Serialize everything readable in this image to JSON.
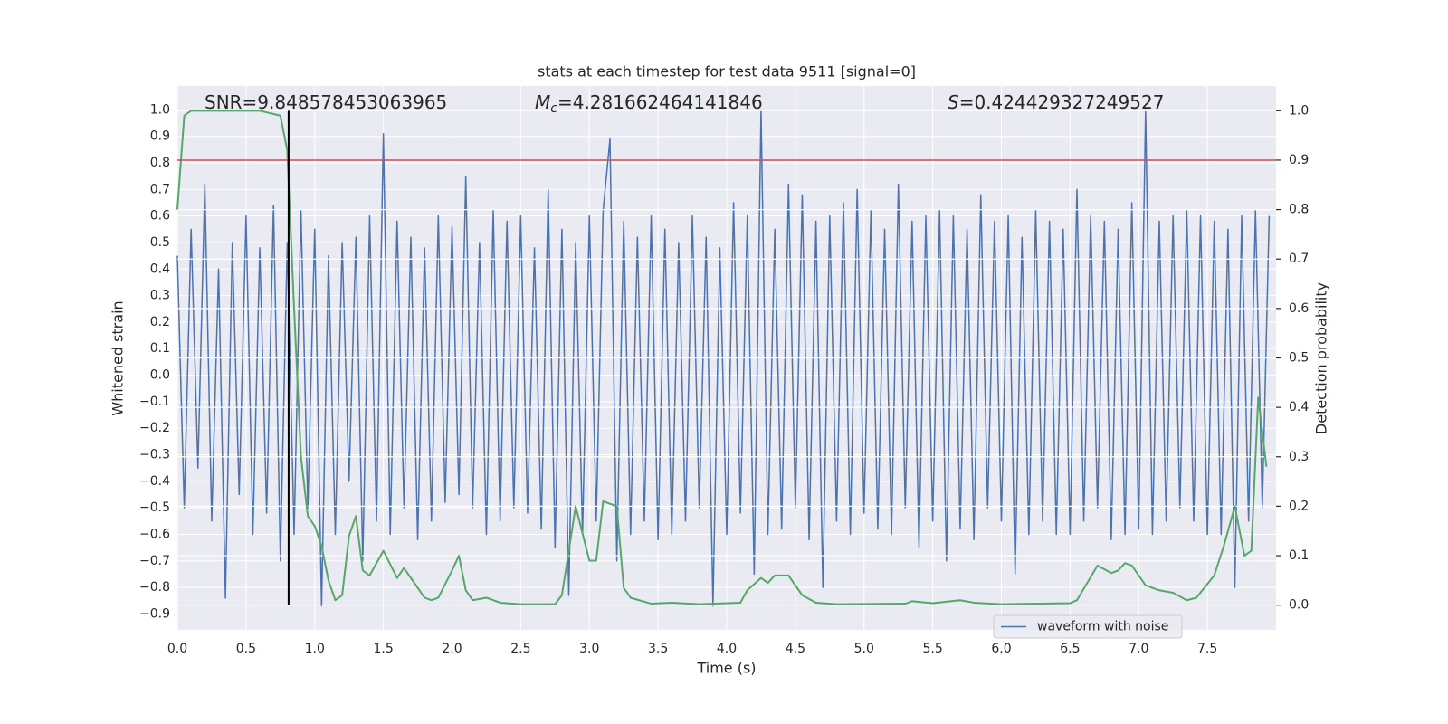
{
  "chart_data": {
    "type": "line",
    "title": "stats at each timestep for test data 9511 [signal=0]",
    "x_label": "Time (s)",
    "y_label": "Whitened strain",
    "y2_label": "Detection probability",
    "annotations": [
      {
        "text": "SNR=9.848578453063965"
      },
      {
        "symbol": "M",
        "subscript": "c",
        "text": "=4.281662464141846"
      },
      {
        "symbol": "S",
        "text": "=0.424429327249527"
      }
    ],
    "xlim": [
      0,
      8
    ],
    "ylim": [
      -0.96,
      1.09
    ],
    "y2lim": [
      -0.05,
      1.05
    ],
    "xticks": [
      {
        "value": 0,
        "label": "0.0"
      },
      0.5,
      {
        "value": 1,
        "label": "1.0"
      },
      1.5,
      {
        "value": 2,
        "label": "2.0"
      },
      2.5,
      {
        "value": 3,
        "label": "3.0"
      },
      3.5,
      {
        "value": 4,
        "label": "4.0"
      },
      4.5,
      {
        "value": 5,
        "label": "5.0"
      },
      5.5,
      {
        "value": 6,
        "label": "6.0"
      },
      6.5,
      {
        "value": 7,
        "label": "7.0"
      },
      7.5
    ],
    "yticks": [
      {
        "value": -0.9,
        "label": "−0.9"
      },
      {
        "value": -0.8,
        "label": "−0.8"
      },
      {
        "value": -0.7,
        "label": "−0.7"
      },
      {
        "value": -0.6,
        "label": "−0.6"
      },
      {
        "value": -0.5,
        "label": "−0.5"
      },
      {
        "value": -0.4,
        "label": "−0.4"
      },
      {
        "value": -0.3,
        "label": "−0.3"
      },
      {
        "value": -0.2,
        "label": "−0.2"
      },
      {
        "value": -0.1,
        "label": "−0.1"
      },
      {
        "value": 0,
        "label": "0.0"
      },
      0.1,
      0.2,
      0.3,
      0.4,
      0.5,
      0.6,
      0.7,
      0.8,
      0.9,
      {
        "value": 1,
        "label": "1.0"
      }
    ],
    "y2ticks": [
      {
        "value": 0,
        "label": "0.0"
      },
      0.1,
      0.2,
      0.3,
      0.4,
      0.5,
      0.6,
      0.7,
      0.8,
      0.9,
      {
        "value": 1,
        "label": "1.0"
      }
    ],
    "grid": true,
    "legend": "lower right",
    "series": [
      {
        "name": "waveform with noise",
        "color": "#4c72b0",
        "x": [
          0,
          0.05,
          0.1,
          0.15,
          0.2,
          0.25,
          0.3,
          0.35,
          0.4,
          0.45,
          0.5,
          0.55,
          0.6,
          0.65,
          0.7,
          0.75,
          0.8,
          0.85,
          0.9,
          0.95,
          1,
          1.05,
          1.1,
          1.15,
          1.2,
          1.25,
          1.3,
          1.35,
          1.4,
          1.45,
          1.5,
          1.55,
          1.6,
          1.65,
          1.7,
          1.75,
          1.8,
          1.85,
          1.9,
          1.95,
          2,
          2.05,
          2.1,
          2.15,
          2.2,
          2.25,
          2.3,
          2.35,
          2.4,
          2.45,
          2.5,
          2.55,
          2.6,
          2.65,
          2.7,
          2.75,
          2.8,
          2.85,
          2.9,
          2.95,
          3,
          3.05,
          3.1,
          3.15,
          3.2,
          3.25,
          3.3,
          3.35,
          3.4,
          3.45,
          3.5,
          3.55,
          3.6,
          3.65,
          3.7,
          3.75,
          3.8,
          3.85,
          3.9,
          3.95,
          4,
          4.05,
          4.1,
          4.15,
          4.2,
          4.25,
          4.3,
          4.35,
          4.4,
          4.45,
          4.5,
          4.55,
          4.6,
          4.65,
          4.7,
          4.75,
          4.8,
          4.85,
          4.9,
          4.95,
          5,
          5.05,
          5.1,
          5.15,
          5.2,
          5.25,
          5.3,
          5.35,
          5.4,
          5.45,
          5.5,
          5.55,
          5.6,
          5.65,
          5.7,
          5.75,
          5.8,
          5.85,
          5.9,
          5.95,
          6,
          6.05,
          6.1,
          6.15,
          6.2,
          6.25,
          6.3,
          6.35,
          6.4,
          6.45,
          6.5,
          6.55,
          6.6,
          6.65,
          6.7,
          6.75,
          6.8,
          6.85,
          6.9,
          6.95,
          7,
          7.05,
          7.1,
          7.15,
          7.2,
          7.25,
          7.3,
          7.35,
          7.4,
          7.45,
          7.5,
          7.55,
          7.6,
          7.65,
          7.7,
          7.75,
          7.8,
          7.85,
          7.9,
          7.95
        ],
        "values": [
          0.45,
          -0.5,
          0.55,
          -0.35,
          0.72,
          -0.55,
          0.4,
          -0.84,
          0.5,
          -0.45,
          0.6,
          -0.6,
          0.48,
          -0.52,
          0.64,
          -0.7,
          0.5,
          -0.6,
          0.62,
          -0.5,
          0.55,
          -0.87,
          0.45,
          -0.6,
          0.5,
          -0.4,
          0.52,
          -0.7,
          0.6,
          -0.55,
          0.91,
          -0.6,
          0.58,
          -0.5,
          0.52,
          -0.62,
          0.48,
          -0.55,
          0.6,
          -0.48,
          0.56,
          -0.45,
          0.75,
          -0.5,
          0.5,
          -0.6,
          0.62,
          -0.55,
          0.58,
          -0.5,
          0.6,
          -0.52,
          0.48,
          -0.58,
          0.7,
          -0.65,
          0.55,
          -0.83,
          0.5,
          -0.6,
          0.6,
          -0.55,
          0.62,
          0.89,
          -0.7,
          0.58,
          -0.6,
          0.52,
          -0.55,
          0.6,
          -0.62,
          0.55,
          -0.6,
          0.5,
          -0.55,
          0.6,
          -0.5,
          0.52,
          -0.87,
          0.48,
          -0.6,
          0.65,
          -0.52,
          0.6,
          -0.75,
          1.0,
          -0.6,
          0.55,
          -0.58,
          0.72,
          -0.5,
          0.68,
          -0.62,
          0.58,
          -0.8,
          0.6,
          -0.55,
          0.65,
          -0.6,
          0.7,
          -0.52,
          0.62,
          -0.58,
          0.55,
          -0.6,
          0.72,
          -0.5,
          0.58,
          -0.65,
          0.6,
          -0.55,
          0.62,
          -0.7,
          0.6,
          -0.58,
          0.55,
          -0.62,
          0.68,
          -0.5,
          0.58,
          -0.55,
          0.6,
          -0.75,
          0.52,
          -0.6,
          0.62,
          -0.55,
          0.58,
          -0.6,
          0.55,
          -0.6,
          0.7,
          -0.55,
          0.6,
          -0.5,
          0.58,
          -0.62,
          0.55,
          -0.6,
          0.65,
          -0.58,
          1.0,
          -0.6,
          0.58,
          -0.55,
          0.6,
          -0.5,
          0.62,
          -0.55,
          0.6,
          -0.6,
          0.58,
          -0.6,
          0.55,
          -0.8,
          0.6,
          -0.55,
          0.62,
          -0.5,
          0.6
        ]
      },
      {
        "color": "#55a868",
        "axis": "y2",
        "x": [
          0,
          0.05,
          0.1,
          0.3,
          0.6,
          0.75,
          0.8,
          0.85,
          0.9,
          0.95,
          1.0,
          1.05,
          1.1,
          1.15,
          1.2,
          1.25,
          1.3,
          1.35,
          1.4,
          1.5,
          1.6,
          1.65,
          1.7,
          1.8,
          1.85,
          1.9,
          2.0,
          2.05,
          2.1,
          2.15,
          2.25,
          2.35,
          2.5,
          2.75,
          2.8,
          2.9,
          3.0,
          3.05,
          3.1,
          3.2,
          3.25,
          3.3,
          3.45,
          3.6,
          3.8,
          4.1,
          4.15,
          4.25,
          4.3,
          4.35,
          4.45,
          4.55,
          4.65,
          4.8,
          5.3,
          5.35,
          5.5,
          5.7,
          5.8,
          6.0,
          6.5,
          6.55,
          6.7,
          6.8,
          6.85,
          6.9,
          6.95,
          7.05,
          7.15,
          7.25,
          7.35,
          7.42,
          7.55,
          7.62,
          7.7,
          7.77,
          7.82,
          7.87,
          7.93
        ],
        "values": [
          0.8,
          0.99,
          1.0,
          1.0,
          1.0,
          0.99,
          0.92,
          0.6,
          0.3,
          0.18,
          0.16,
          0.12,
          0.05,
          0.01,
          0.02,
          0.14,
          0.18,
          0.07,
          0.06,
          0.11,
          0.055,
          0.075,
          0.055,
          0.015,
          0.01,
          0.015,
          0.07,
          0.1,
          0.03,
          0.01,
          0.015,
          0.005,
          0.002,
          0.002,
          0.02,
          0.2,
          0.09,
          0.09,
          0.21,
          0.2,
          0.035,
          0.015,
          0.003,
          0.005,
          0.002,
          0.005,
          0.03,
          0.055,
          0.045,
          0.06,
          0.06,
          0.02,
          0.005,
          0.002,
          0.003,
          0.008,
          0.004,
          0.01,
          0.005,
          0.002,
          0.004,
          0.01,
          0.08,
          0.065,
          0.07,
          0.085,
          0.08,
          0.04,
          0.03,
          0.025,
          0.01,
          0.015,
          0.06,
          0.12,
          0.2,
          0.1,
          0.11,
          0.42,
          0.28
        ]
      }
    ],
    "hline": {
      "y": 0.9,
      "axis": "y2",
      "color": "#c44e52"
    },
    "vline": {
      "x": 0.81,
      "ymin": 0,
      "ymax": 1,
      "axis": "y2",
      "color": "#000000"
    }
  }
}
